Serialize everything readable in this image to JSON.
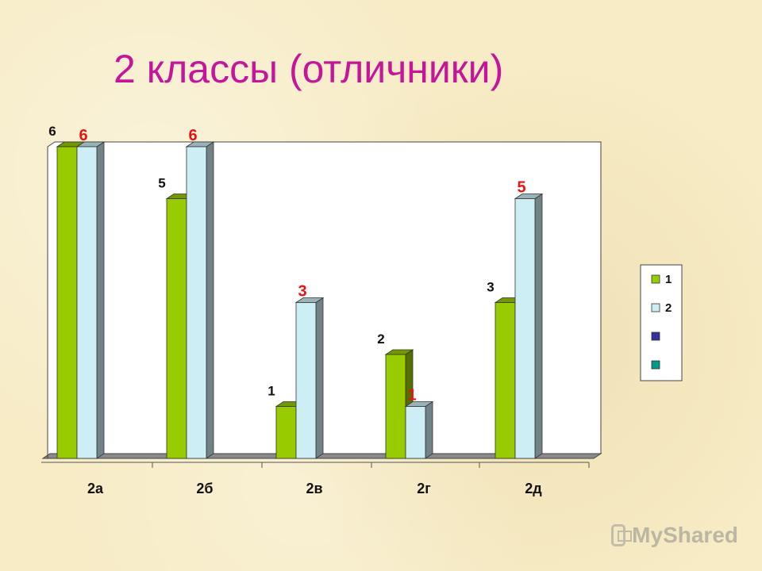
{
  "title": "2 классы (отличники)",
  "watermark": "MyShared",
  "chart_data": {
    "type": "bar",
    "categories": [
      "2а",
      "2б",
      "2в",
      "2г",
      "2д"
    ],
    "series": [
      {
        "name": "1",
        "values": [
          6,
          5,
          1,
          2,
          3
        ],
        "color": "#99cc00",
        "label_color": "#111111"
      },
      {
        "name": "2",
        "values": [
          6,
          6,
          3,
          1,
          5
        ],
        "color": "#cdeef5",
        "label_color": "#ee1111"
      }
    ],
    "extra_legend": [
      {
        "name": "",
        "color": "#333399"
      },
      {
        "name": "",
        "color": "#009a8a"
      }
    ],
    "ylim": [
      0,
      6
    ],
    "grid": false,
    "legend": "right",
    "xlabel": "",
    "ylabel": ""
  }
}
